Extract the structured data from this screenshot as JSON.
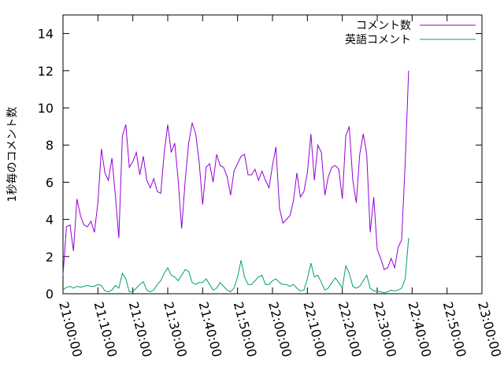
{
  "chart_data": {
    "type": "line",
    "ylabel": "1秒毎のコメント数",
    "xlabel": "",
    "xlim": [
      "21:00:00",
      "23:00:00"
    ],
    "ylim": [
      0,
      15
    ],
    "x_ticks": [
      "21:00:00",
      "21:10:00",
      "21:20:00",
      "21:30:00",
      "21:40:00",
      "21:50:00",
      "22:00:00",
      "22:10:00",
      "22:20:00",
      "22:30:00",
      "22:40:00",
      "22:50:00",
      "23:00:00"
    ],
    "y_ticks": [
      0,
      2,
      4,
      6,
      8,
      10,
      12,
      14
    ],
    "legend_position": "top-right",
    "grid": false,
    "x_start": "21:00:00",
    "x_step": "1 minute",
    "series": [
      {
        "name": "コメント数",
        "color": "#9400d3",
        "values": [
          1.0,
          3.6,
          3.7,
          2.3,
          5.1,
          4.2,
          3.7,
          3.6,
          3.9,
          3.3,
          4.9,
          7.8,
          6.5,
          6.1,
          7.3,
          5.3,
          3.0,
          8.5,
          9.1,
          6.8,
          7.1,
          7.6,
          6.4,
          7.4,
          6.1,
          5.7,
          6.2,
          5.5,
          5.4,
          7.6,
          9.1,
          7.6,
          8.1,
          6.1,
          3.5,
          6.1,
          8.1,
          9.2,
          8.6,
          7.1,
          4.8,
          6.8,
          7.0,
          6.0,
          7.5,
          6.9,
          6.8,
          6.3,
          5.3,
          6.6,
          7.0,
          7.4,
          7.5,
          6.4,
          6.4,
          6.7,
          6.1,
          6.6,
          6.1,
          5.7,
          6.9,
          7.9,
          4.6,
          3.8,
          4.0,
          4.2,
          5.0,
          6.5,
          5.2,
          5.5,
          6.5,
          8.6,
          6.1,
          8.0,
          7.6,
          5.3,
          6.3,
          6.8,
          6.9,
          6.7,
          5.1,
          8.5,
          9.0,
          6.1,
          4.9,
          7.5,
          8.6,
          7.5,
          3.3,
          5.2,
          2.4,
          1.9,
          1.3,
          1.4,
          1.9,
          1.4,
          2.5,
          2.9,
          7.0,
          12.0
        ]
      },
      {
        "name": "英語コメント",
        "color": "#009e73",
        "values": [
          0.2,
          0.35,
          0.4,
          0.3,
          0.4,
          0.35,
          0.4,
          0.45,
          0.4,
          0.4,
          0.5,
          0.45,
          0.15,
          0.1,
          0.2,
          0.45,
          0.3,
          1.1,
          0.8,
          0.1,
          0.1,
          0.3,
          0.5,
          0.65,
          0.2,
          0.1,
          0.2,
          0.5,
          0.7,
          1.1,
          1.4,
          1.0,
          0.9,
          0.7,
          1.0,
          1.3,
          1.2,
          0.6,
          0.5,
          0.6,
          0.6,
          0.8,
          0.5,
          0.2,
          0.3,
          0.6,
          0.4,
          0.2,
          0.1,
          0.3,
          0.9,
          1.8,
          0.9,
          0.5,
          0.5,
          0.7,
          0.9,
          1.0,
          0.5,
          0.5,
          0.7,
          0.8,
          0.6,
          0.5,
          0.5,
          0.4,
          0.5,
          0.3,
          0.15,
          0.2,
          0.8,
          1.65,
          0.9,
          1.0,
          0.6,
          0.2,
          0.3,
          0.6,
          0.85,
          0.6,
          0.3,
          1.5,
          1.1,
          0.4,
          0.3,
          0.4,
          0.7,
          1.0,
          0.3,
          0.15,
          0.15,
          0.1,
          0.05,
          0.1,
          0.2,
          0.15,
          0.2,
          0.3,
          0.8,
          3.0
        ]
      }
    ]
  }
}
